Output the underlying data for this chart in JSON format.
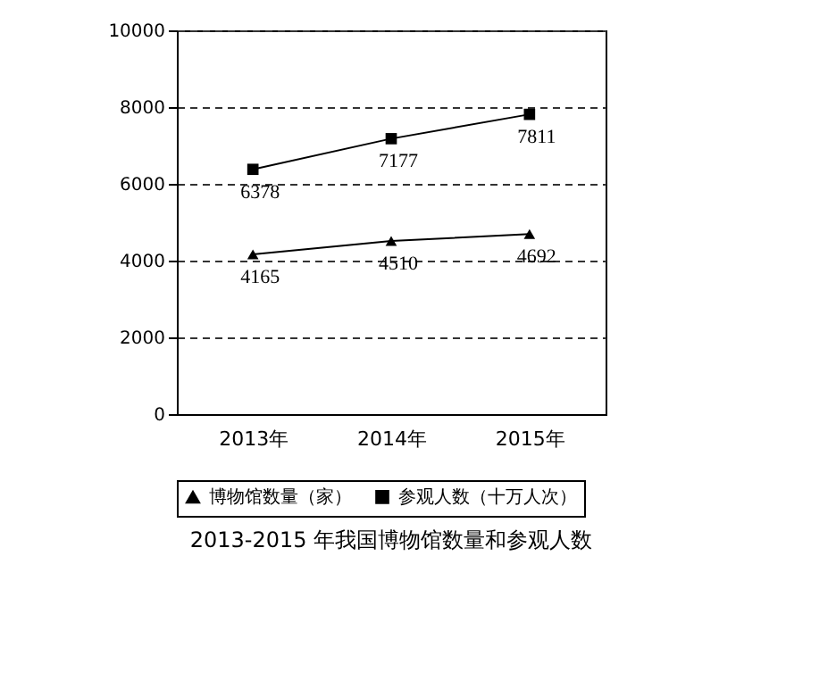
{
  "chart_data": {
    "type": "line",
    "title": "2013-2015 年我国博物馆数量和参观人数",
    "categories": [
      "2013年",
      "2014年",
      "2015年"
    ],
    "series": [
      {
        "name": "博物馆数量（家）",
        "color": "#000000",
        "marker": "triangle",
        "values": [
          4165,
          4510,
          4692
        ]
      },
      {
        "name": "参观人数（十万人次）",
        "color": "#000000",
        "marker": "square",
        "values": [
          6378,
          7177,
          7811
        ]
      }
    ],
    "ylim": [
      0,
      10000
    ],
    "yticks": [
      0,
      2000,
      4000,
      6000,
      8000,
      10000
    ],
    "grid": "y",
    "legend": "bottom",
    "data_labels": true,
    "line_style": "solid"
  }
}
